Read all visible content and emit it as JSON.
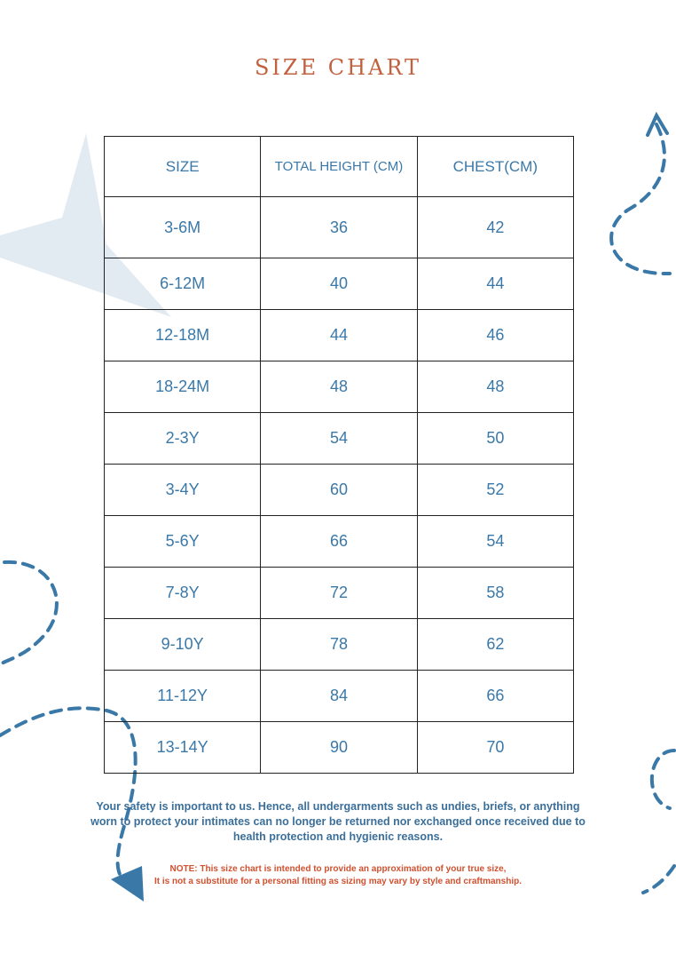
{
  "header": {
    "title": "SIZE CHART"
  },
  "table": {
    "columns": [
      "SIZE",
      "TOTAL HEIGHT (CM)",
      "CHEST(CM)"
    ],
    "rows": [
      [
        "3-6M",
        36,
        42
      ],
      [
        "6-12M",
        40,
        44
      ],
      [
        "12-18M",
        44,
        46
      ],
      [
        "18-24M",
        48,
        48
      ],
      [
        "2-3Y",
        54,
        50
      ],
      [
        "3-4Y",
        60,
        52
      ],
      [
        "5-6Y",
        66,
        54
      ],
      [
        "7-8Y",
        72,
        58
      ],
      [
        "9-10Y",
        78,
        62
      ],
      [
        "11-12Y",
        84,
        66
      ],
      [
        "13-14Y",
        90,
        70
      ]
    ]
  },
  "notes": {
    "safety": "Your safety is important to us. Hence, all undergarments such as undies, briefs, or anything worn to protect your intimates can no longer be returned nor exchanged once received due to health protection and hygienic reasons.",
    "disclaimer": [
      "NOTE: This size chart is intended to provide an approximation of your true size,",
      "It is not a substitute for a personal fitting as sizing may vary by style and craftmanship."
    ]
  }
}
